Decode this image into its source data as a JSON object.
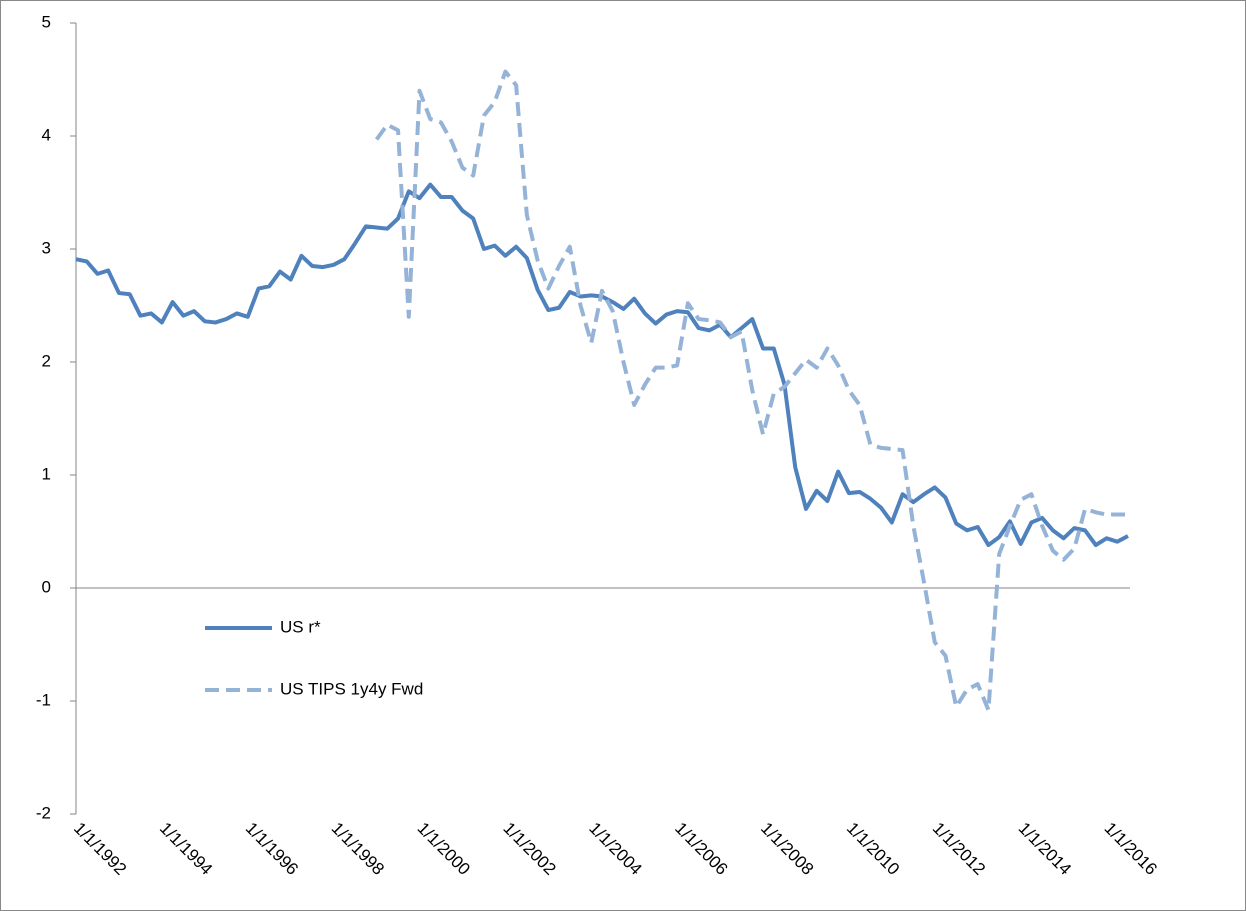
{
  "chart_data": {
    "type": "line",
    "categories": [
      "1/1/1992",
      null,
      null,
      null,
      null,
      null,
      null,
      null,
      "1/1/1994",
      null,
      null,
      null,
      null,
      null,
      null,
      null,
      "1/1/1996",
      null,
      null,
      null,
      null,
      null,
      null,
      null,
      "1/1/1998",
      null,
      null,
      null,
      null,
      null,
      null,
      null,
      "1/1/2000",
      null,
      null,
      null,
      null,
      null,
      null,
      null,
      "1/1/2002",
      null,
      null,
      null,
      null,
      null,
      null,
      null,
      "1/1/2004",
      null,
      null,
      null,
      null,
      null,
      null,
      null,
      "1/1/2006",
      null,
      null,
      null,
      null,
      null,
      null,
      null,
      "1/1/2008",
      null,
      null,
      null,
      null,
      null,
      null,
      null,
      "1/1/2010",
      null,
      null,
      null,
      null,
      null,
      null,
      null,
      "1/1/2012",
      null,
      null,
      null,
      null,
      null,
      null,
      null,
      "1/1/2014",
      null,
      null,
      null,
      null,
      null,
      null,
      null,
      "1/1/2016",
      null,
      null
    ],
    "series": [
      {
        "name": "US r*",
        "color": "#4f81bd",
        "dash": false,
        "values": [
          2.91,
          2.89,
          2.78,
          2.81,
          2.61,
          2.6,
          2.41,
          2.43,
          2.35,
          2.53,
          2.41,
          2.45,
          2.36,
          2.35,
          2.38,
          2.43,
          2.4,
          2.65,
          2.67,
          2.8,
          2.73,
          2.94,
          2.85,
          2.84,
          2.86,
          2.91,
          3.05,
          3.2,
          3.19,
          3.18,
          3.27,
          3.51,
          3.45,
          3.57,
          3.46,
          3.46,
          3.34,
          3.27,
          3.0,
          3.03,
          2.94,
          3.02,
          2.92,
          2.64,
          2.46,
          2.48,
          2.62,
          2.58,
          2.59,
          2.58,
          2.53,
          2.47,
          2.56,
          2.43,
          2.34,
          2.42,
          2.45,
          2.44,
          2.3,
          2.28,
          2.33,
          2.22,
          2.3,
          2.38,
          2.12,
          2.12,
          1.8,
          1.07,
          0.7,
          0.86,
          0.77,
          1.03,
          0.84,
          0.85,
          0.79,
          0.71,
          0.58,
          0.83,
          0.76,
          0.83,
          0.89,
          0.8,
          0.57,
          0.51,
          0.54,
          0.38,
          0.45,
          0.59,
          0.39,
          0.58,
          0.62,
          0.51,
          0.44,
          0.53,
          0.51,
          0.38,
          0.44,
          0.41,
          0.46
        ]
      },
      {
        "name": "US TIPS 1y4y Fwd",
        "color": "#95b3d7",
        "dash": true,
        "values": [
          null,
          null,
          null,
          null,
          null,
          null,
          null,
          null,
          null,
          null,
          null,
          null,
          null,
          null,
          null,
          null,
          null,
          null,
          null,
          null,
          null,
          null,
          null,
          null,
          null,
          null,
          null,
          null,
          3.97,
          4.1,
          4.05,
          2.4,
          4.4,
          4.15,
          4.12,
          3.95,
          3.72,
          3.65,
          4.18,
          4.3,
          4.57,
          4.45,
          3.3,
          2.9,
          2.65,
          2.85,
          3.02,
          2.5,
          2.17,
          2.63,
          2.45,
          2.0,
          1.62,
          1.8,
          1.95,
          1.95,
          1.97,
          2.52,
          2.38,
          2.37,
          2.35,
          2.22,
          2.27,
          1.75,
          1.36,
          1.72,
          1.78,
          1.9,
          2.02,
          1.95,
          2.12,
          1.97,
          1.75,
          1.62,
          1.27,
          1.24,
          1.23,
          1.22,
          0.55,
          0.05,
          -0.48,
          -0.6,
          -1.05,
          -0.9,
          -0.85,
          -1.08,
          0.3,
          0.55,
          0.78,
          0.83,
          0.55,
          0.33,
          0.25,
          0.35,
          0.7,
          0.67,
          0.65,
          0.65,
          0.65
        ]
      }
    ],
    "ylim": [
      -2,
      5
    ],
    "yticks": [
      -2,
      -1,
      0,
      1,
      2,
      3,
      4,
      5
    ]
  }
}
